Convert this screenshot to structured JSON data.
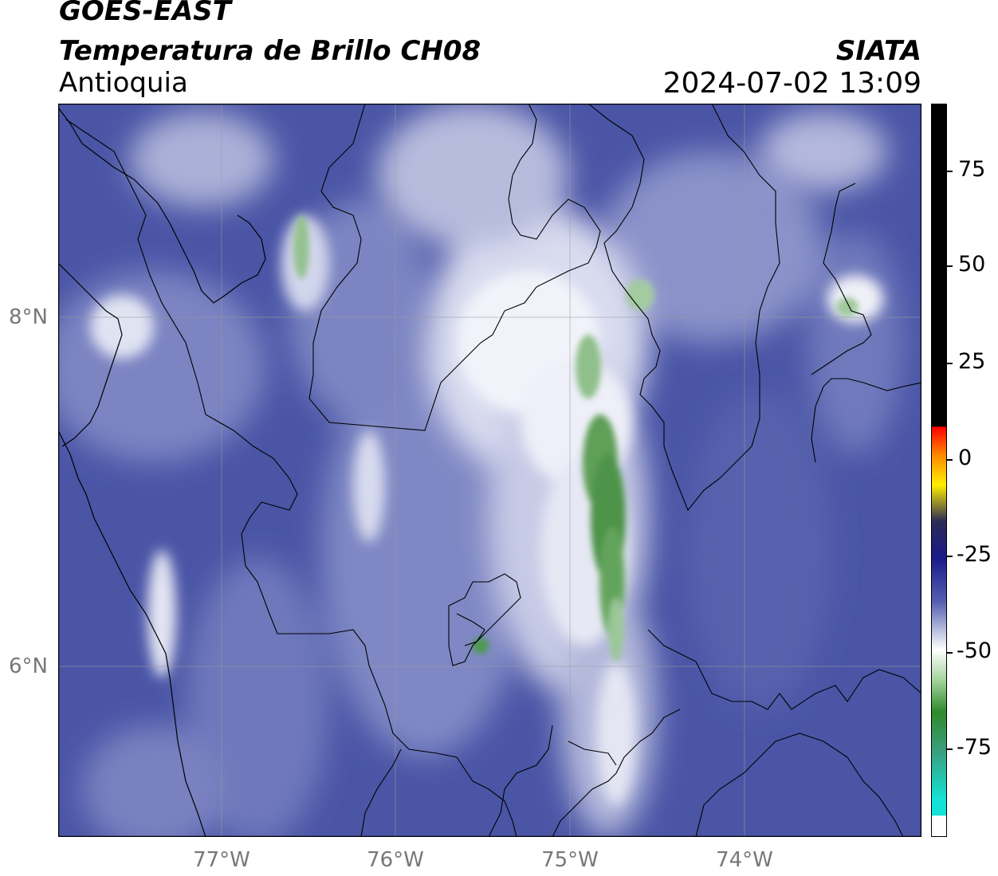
{
  "header": {
    "satellite": "GOES-EAST",
    "product": "Temperatura de Brillo CH08",
    "region": "Antioquia",
    "organization": "SIATA",
    "timestamp": "2024-07-02 13:09"
  },
  "axes": {
    "lat_labels": [
      "8°N",
      "6°N"
    ],
    "lon_labels": [
      "77°W",
      "76°W",
      "75°W",
      "74°W"
    ]
  },
  "colorbar": {
    "tick_labels": [
      "75",
      "50",
      "25",
      "0",
      "-25",
      "-50",
      "-75"
    ]
  }
}
